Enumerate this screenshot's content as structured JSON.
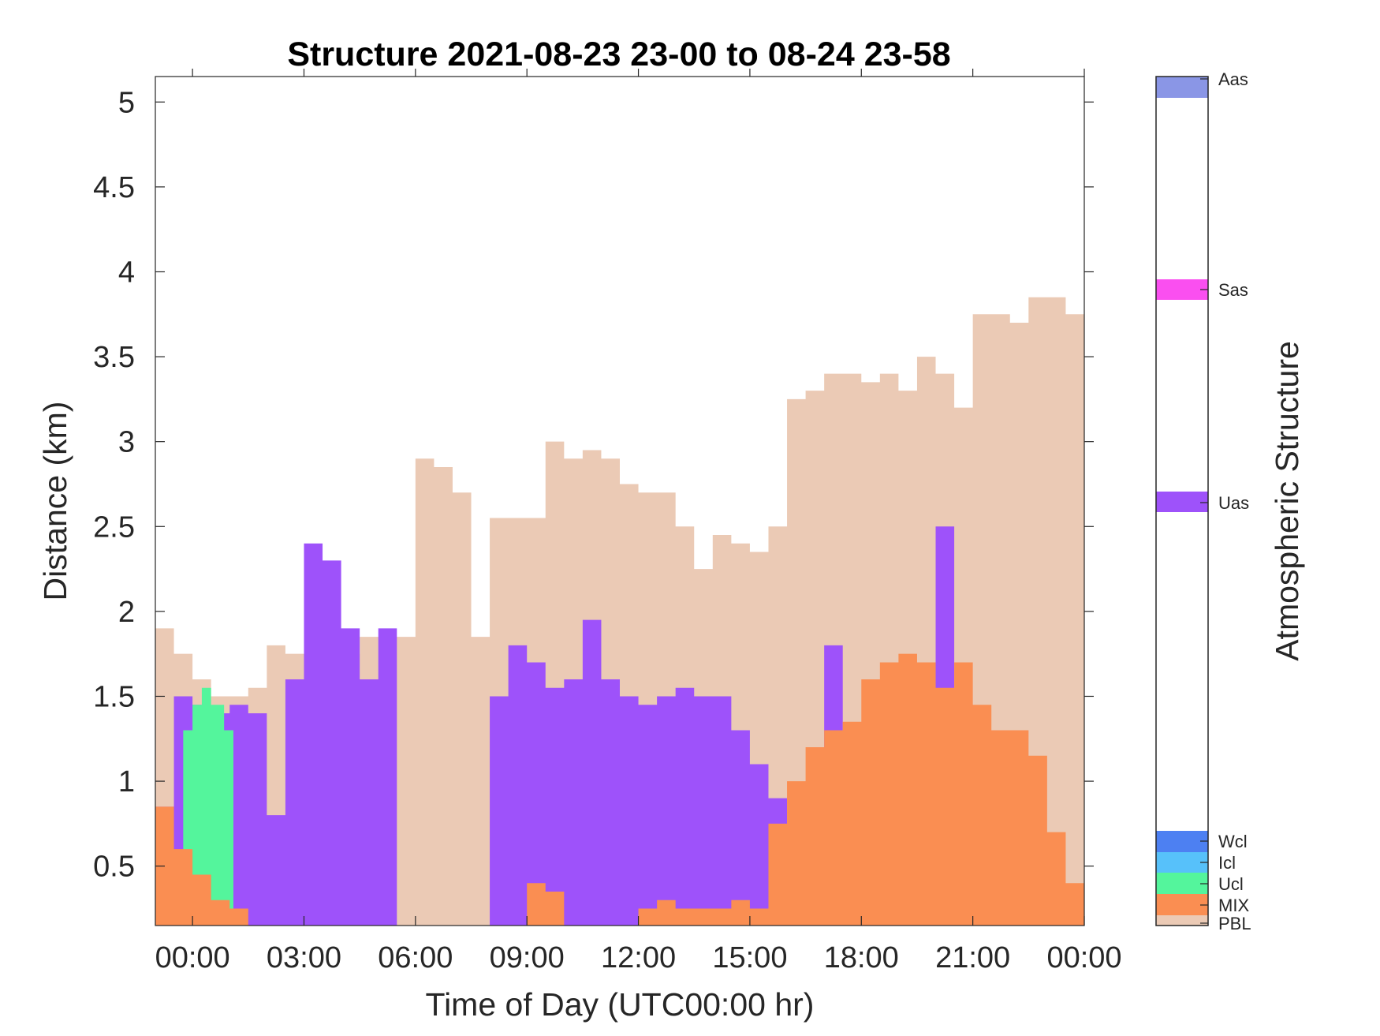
{
  "chart_data": {
    "type": "area",
    "title": "Structure 2021-08-23 23-00 to 08-24 23-58",
    "xlabel": "Time of Day (UTC00:00 hr)",
    "ylabel": "Distance (km)",
    "x_ticks": [
      "00:00",
      "03:00",
      "06:00",
      "09:00",
      "12:00",
      "15:00",
      "18:00",
      "21:00",
      "00:00"
    ],
    "y_ticks": [
      "0.5",
      "1",
      "1.5",
      "2",
      "2.5",
      "3",
      "3.5",
      "4",
      "4.5",
      "5"
    ],
    "x_tick_hours": [
      0,
      3,
      6,
      9,
      12,
      15,
      18,
      21,
      24
    ],
    "y_tick_values": [
      0.5,
      1,
      1.5,
      2,
      2.5,
      3,
      3.5,
      4,
      4.5,
      5
    ],
    "xlim_hours": [
      -1,
      24
    ],
    "ylim": [
      0.15,
      5.15
    ],
    "colorbar": {
      "label": "Atmospheric Structure",
      "categories": [
        {
          "name": "Aas",
          "color": "#8a96e6"
        },
        {
          "name": "Sas",
          "color": "#fa4ff0"
        },
        {
          "name": "Uas",
          "color": "#9e52fa"
        },
        {
          "name": "Wcl",
          "color": "#4d80f2"
        },
        {
          "name": "Icl",
          "color": "#57c1fa"
        },
        {
          "name": "Ucl",
          "color": "#54f59c"
        },
        {
          "name": "MIX",
          "color": "#fa8e52"
        },
        {
          "name": "PBL",
          "color": "#ebcab5"
        }
      ]
    },
    "series": [
      {
        "name": "PBL",
        "color": "#ebcab5",
        "x": [
          -1,
          -0.5,
          0,
          0.5,
          1,
          1.5,
          2,
          2.5,
          3,
          3.5,
          4,
          4.5,
          5,
          5.5,
          6,
          6.5,
          7,
          7.5,
          8,
          8.5,
          9,
          9.5,
          10,
          10.5,
          11,
          11.5,
          12,
          12.5,
          13,
          13.5,
          14,
          14.5,
          15,
          15.5,
          16,
          16.5,
          17,
          17.5,
          18,
          18.5,
          19,
          19.5,
          20,
          20.5,
          21,
          21.5,
          22,
          22.5,
          23,
          23.5,
          24
        ],
        "y": [
          1.9,
          1.75,
          1.6,
          1.5,
          1.5,
          1.55,
          1.8,
          1.75,
          1.9,
          1.85,
          1.75,
          1.85,
          1.85,
          1.85,
          2.9,
          2.85,
          2.7,
          1.85,
          2.55,
          2.55,
          2.55,
          3.0,
          2.9,
          2.95,
          2.9,
          2.75,
          2.7,
          2.7,
          2.5,
          2.25,
          2.45,
          2.4,
          2.35,
          2.5,
          3.25,
          3.3,
          3.4,
          3.4,
          3.35,
          3.4,
          3.3,
          3.5,
          3.4,
          3.2,
          3.75,
          3.75,
          3.7,
          3.85,
          3.85,
          3.75,
          3.75
        ]
      },
      {
        "name": "Uas",
        "color": "#9e52fa",
        "x": [
          -1,
          -0.5,
          0,
          0.5,
          1,
          1.5,
          2,
          2.5,
          3,
          3.5,
          4,
          4.5,
          5,
          5.5,
          6,
          6.5,
          7,
          7.5,
          8,
          8.5,
          9,
          9.5,
          10,
          10.5,
          11,
          11.5,
          12,
          12.5,
          13,
          13.5,
          14,
          14.5,
          15,
          15.5,
          16,
          16.5,
          17,
          17.5,
          18,
          18.5,
          19,
          19.5,
          20,
          20.5,
          21,
          21.5,
          22,
          22.5,
          23,
          23.5,
          24
        ],
        "y": [
          0.85,
          1.5,
          1.45,
          1.4,
          1.45,
          1.4,
          0.8,
          1.6,
          2.4,
          2.3,
          1.9,
          1.6,
          1.9,
          0,
          0,
          0,
          0,
          0,
          1.5,
          1.8,
          1.7,
          1.55,
          1.6,
          1.95,
          1.6,
          1.5,
          1.45,
          1.5,
          1.55,
          1.5,
          1.5,
          1.3,
          1.1,
          0.9,
          0,
          0,
          1.8,
          0,
          1.2,
          1.5,
          1.6,
          1.5,
          2.5,
          0,
          1.1,
          0,
          0,
          0,
          0,
          0,
          0
        ]
      },
      {
        "name": "Ucl",
        "color": "#54f59c",
        "x": [
          -0.25,
          0,
          0.25,
          0.5,
          0.75,
          0.85
        ],
        "y": [
          1.3,
          1.45,
          1.55,
          1.45,
          1.45,
          1.3
        ]
      },
      {
        "name": "MIX",
        "color": "#fa8e52",
        "x": [
          -1,
          -0.5,
          0,
          0.5,
          1,
          1.5,
          2,
          2.5,
          3,
          3.5,
          4,
          4.5,
          5,
          5.5,
          6,
          6.5,
          7,
          7.5,
          8,
          8.5,
          9,
          9.5,
          10,
          10.5,
          11,
          11.5,
          12,
          12.5,
          13,
          13.5,
          14,
          14.5,
          15,
          15.5,
          16,
          16.5,
          17,
          17.5,
          18,
          18.5,
          19,
          19.5,
          20,
          20.5,
          21,
          21.5,
          22,
          22.5,
          23,
          23.5,
          24
        ],
        "y": [
          0.85,
          0.6,
          0.45,
          0.3,
          0.25,
          0,
          0,
          0,
          0,
          0,
          0,
          0,
          0,
          0,
          0,
          0,
          0,
          0,
          0,
          0,
          0.4,
          0.35,
          0,
          0,
          0,
          0,
          0.25,
          0.3,
          0.25,
          0.25,
          0.25,
          0.3,
          0.25,
          0.75,
          1.0,
          1.2,
          1.3,
          1.35,
          1.6,
          1.7,
          1.75,
          1.7,
          1.55,
          1.7,
          1.45,
          1.3,
          1.3,
          1.15,
          0.7,
          0.4,
          0
        ]
      }
    ]
  }
}
